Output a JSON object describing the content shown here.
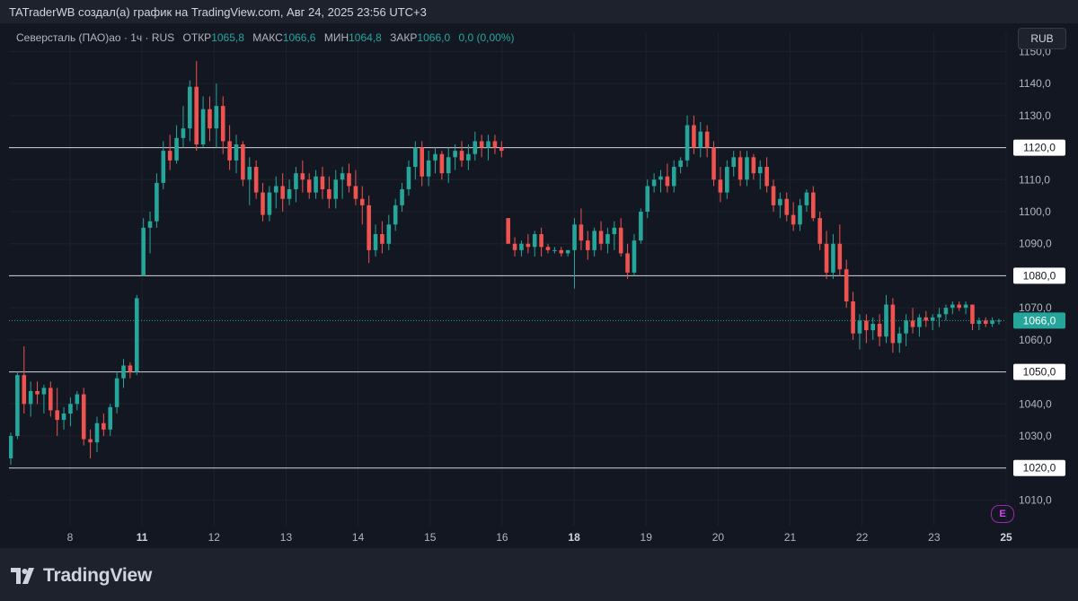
{
  "header": {
    "text": "TATraderWB создал(а) график на TradingView.com, Авг 24, 2025 23:56 UTC+3"
  },
  "legend": {
    "symbol": "Северсталь (ПАО)ао · 1ч · RUS",
    "open_label": "ОТКР",
    "open_value": "1065,8",
    "high_label": "МАКС",
    "high_value": "1066,6",
    "low_label": "МИН",
    "low_value": "1064,8",
    "close_label": "ЗАКР",
    "close_value": "1066,0",
    "change": "0,0 (0,00%)"
  },
  "currency": "RUB",
  "event_badge": "E",
  "logo": {
    "text": "TradingView"
  },
  "colors": {
    "up": "#26a69a",
    "down": "#ef5350",
    "hline": "#d1d4dc",
    "grid": "#1e222d",
    "axis_text": "#b2b5be"
  },
  "chart_data": {
    "type": "candlestick",
    "title": "Северсталь (ПАО)ао · 1ч · RUS",
    "y_range": [
      1002,
      1156
    ],
    "y_ticks": [
      1010,
      1020,
      1030,
      1040,
      1050,
      1060,
      1070,
      1080,
      1090,
      1100,
      1110,
      1120,
      1130,
      1140,
      1150
    ],
    "y_tick_labels": [
      "1010,0",
      "1020,0",
      "1030,0",
      "1040,0",
      "1050,0",
      "1060,0",
      "1070,0",
      "1080,0",
      "1090,0",
      "1100,0",
      "1110,0",
      "1120,0",
      "1130,0",
      "1140,0",
      "1150,0"
    ],
    "x_labels": [
      {
        "label": "8",
        "bold": false
      },
      {
        "label": "11",
        "bold": true
      },
      {
        "label": "12",
        "bold": false
      },
      {
        "label": "13",
        "bold": false
      },
      {
        "label": "14",
        "bold": false
      },
      {
        "label": "15",
        "bold": false
      },
      {
        "label": "16",
        "bold": false
      },
      {
        "label": "18",
        "bold": true
      },
      {
        "label": "19",
        "bold": false
      },
      {
        "label": "20",
        "bold": false
      },
      {
        "label": "21",
        "bold": false
      },
      {
        "label": "22",
        "bold": false
      },
      {
        "label": "23",
        "bold": false
      },
      {
        "label": "25",
        "bold": true
      }
    ],
    "horizontal_levels": [
      {
        "value": 1120,
        "label": "1120,0"
      },
      {
        "value": 1080,
        "label": "1080,0"
      },
      {
        "value": 1050,
        "label": "1050,0"
      },
      {
        "value": 1020,
        "label": "1020,0"
      }
    ],
    "last_price": {
      "value": 1066,
      "label": "1066,0"
    },
    "candles": [
      [
        1023,
        1031,
        1021,
        1030
      ],
      [
        1030,
        1050,
        1029,
        1049
      ],
      [
        1049,
        1058,
        1037,
        1040
      ],
      [
        1040,
        1047,
        1036,
        1044
      ],
      [
        1044,
        1047,
        1040,
        1043
      ],
      [
        1043,
        1046,
        1037,
        1045
      ],
      [
        1045,
        1047,
        1036,
        1038
      ],
      [
        1038,
        1045,
        1030,
        1035
      ],
      [
        1035,
        1039,
        1032,
        1037
      ],
      [
        1037,
        1042,
        1033,
        1040
      ],
      [
        1040,
        1044,
        1038,
        1043
      ],
      [
        1043,
        1045,
        1027,
        1029
      ],
      [
        1029,
        1032,
        1023,
        1028
      ],
      [
        1028,
        1036,
        1025,
        1034
      ],
      [
        1034,
        1037,
        1030,
        1032
      ],
      [
        1032,
        1040,
        1030,
        1039
      ],
      [
        1039,
        1050,
        1037,
        1048
      ],
      [
        1048,
        1054,
        1045,
        1052
      ],
      [
        1052,
        1053,
        1048,
        1050
      ],
      [
        1050,
        1074,
        1049,
        1073
      ],
      [
        1080,
        1098,
        1080,
        1095
      ],
      [
        1095,
        1100,
        1087,
        1097
      ],
      [
        1097,
        1112,
        1095,
        1109
      ],
      [
        1109,
        1122,
        1107,
        1119
      ],
      [
        1119,
        1124,
        1113,
        1116
      ],
      [
        1116,
        1127,
        1115,
        1123
      ],
      [
        1123,
        1133,
        1120,
        1126
      ],
      [
        1126,
        1141,
        1122,
        1139
      ],
      [
        1139,
        1147,
        1119,
        1121
      ],
      [
        1121,
        1136,
        1120,
        1132
      ],
      [
        1132,
        1136,
        1122,
        1126
      ],
      [
        1126,
        1140,
        1120,
        1133
      ],
      [
        1133,
        1136,
        1118,
        1122
      ],
      [
        1122,
        1127,
        1113,
        1116
      ],
      [
        1116,
        1124,
        1112,
        1121
      ],
      [
        1121,
        1122,
        1108,
        1110
      ],
      [
        1110,
        1117,
        1102,
        1114
      ],
      [
        1114,
        1116,
        1104,
        1106
      ],
      [
        1106,
        1109,
        1097,
        1099
      ],
      [
        1099,
        1108,
        1097,
        1106
      ],
      [
        1106,
        1111,
        1101,
        1108
      ],
      [
        1108,
        1112,
        1100,
        1104
      ],
      [
        1104,
        1110,
        1102,
        1107
      ],
      [
        1107,
        1114,
        1103,
        1112
      ],
      [
        1112,
        1116,
        1106,
        1110
      ],
      [
        1110,
        1112,
        1104,
        1106
      ],
      [
        1106,
        1113,
        1104,
        1111
      ],
      [
        1111,
        1114,
        1104,
        1107
      ],
      [
        1107,
        1111,
        1101,
        1104
      ],
      [
        1104,
        1113,
        1101,
        1110
      ],
      [
        1110,
        1114,
        1104,
        1112
      ],
      [
        1112,
        1115,
        1106,
        1108
      ],
      [
        1108,
        1113,
        1102,
        1104
      ],
      [
        1104,
        1108,
        1096,
        1102
      ],
      [
        1102,
        1105,
        1084,
        1088
      ],
      [
        1088,
        1096,
        1086,
        1093
      ],
      [
        1093,
        1097,
        1087,
        1090
      ],
      [
        1090,
        1099,
        1088,
        1096
      ],
      [
        1096,
        1104,
        1094,
        1102
      ],
      [
        1102,
        1109,
        1100,
        1107
      ],
      [
        1107,
        1116,
        1105,
        1114
      ],
      [
        1114,
        1122,
        1110,
        1120
      ],
      [
        1120,
        1122,
        1108,
        1111
      ],
      [
        1111,
        1119,
        1108,
        1116
      ],
      [
        1116,
        1120,
        1112,
        1118
      ],
      [
        1118,
        1119,
        1110,
        1112
      ],
      [
        1112,
        1120,
        1109,
        1117
      ],
      [
        1117,
        1121,
        1113,
        1119
      ],
      [
        1119,
        1122,
        1114,
        1116
      ],
      [
        1116,
        1121,
        1113,
        1118
      ],
      [
        1118,
        1125,
        1116,
        1122
      ],
      [
        1122,
        1124,
        1117,
        1120
      ],
      [
        1120,
        1124,
        1116,
        1122
      ],
      [
        1122,
        1124,
        1118,
        1120
      ],
      [
        1120,
        1122,
        1117,
        1119
      ],
      [
        1098,
        1098,
        1090,
        1090
      ],
      [
        1090,
        1092,
        1086,
        1088
      ],
      [
        1088,
        1091,
        1086,
        1090
      ],
      [
        1090,
        1093,
        1087,
        1089
      ],
      [
        1089,
        1094,
        1086,
        1093
      ],
      [
        1093,
        1095,
        1086,
        1089
      ],
      [
        1089,
        1090,
        1087,
        1088
      ],
      [
        1088,
        1089,
        1087,
        1088
      ],
      [
        1088,
        1089,
        1086,
        1087
      ],
      [
        1087,
        1088,
        1086,
        1088
      ],
      [
        1088,
        1098,
        1076,
        1096
      ],
      [
        1096,
        1101,
        1088,
        1091
      ],
      [
        1091,
        1094,
        1085,
        1088
      ],
      [
        1088,
        1095,
        1086,
        1094
      ],
      [
        1094,
        1097,
        1088,
        1090
      ],
      [
        1090,
        1095,
        1087,
        1093
      ],
      [
        1093,
        1097,
        1088,
        1095
      ],
      [
        1095,
        1098,
        1086,
        1087
      ],
      [
        1087,
        1090,
        1079,
        1081
      ],
      [
        1081,
        1093,
        1080,
        1091
      ],
      [
        1091,
        1101,
        1090,
        1100
      ],
      [
        1100,
        1110,
        1098,
        1108
      ],
      [
        1108,
        1112,
        1106,
        1110
      ],
      [
        1110,
        1113,
        1106,
        1111
      ],
      [
        1111,
        1115,
        1106,
        1108
      ],
      [
        1108,
        1116,
        1106,
        1114
      ],
      [
        1114,
        1117,
        1112,
        1116
      ],
      [
        1116,
        1130,
        1114,
        1127
      ],
      [
        1127,
        1130,
        1118,
        1120
      ],
      [
        1120,
        1128,
        1117,
        1125
      ],
      [
        1125,
        1127,
        1117,
        1120
      ],
      [
        1120,
        1122,
        1108,
        1110
      ],
      [
        1110,
        1114,
        1103,
        1106
      ],
      [
        1106,
        1116,
        1104,
        1114
      ],
      [
        1114,
        1119,
        1111,
        1117
      ],
      [
        1117,
        1119,
        1108,
        1110
      ],
      [
        1110,
        1119,
        1108,
        1117
      ],
      [
        1117,
        1118,
        1110,
        1112
      ],
      [
        1112,
        1116,
        1107,
        1114
      ],
      [
        1114,
        1117,
        1106,
        1108
      ],
      [
        1108,
        1110,
        1100,
        1102
      ],
      [
        1102,
        1106,
        1098,
        1104
      ],
      [
        1104,
        1106,
        1097,
        1099
      ],
      [
        1099,
        1103,
        1094,
        1096
      ],
      [
        1096,
        1104,
        1094,
        1102
      ],
      [
        1102,
        1107,
        1100,
        1106
      ],
      [
        1106,
        1108,
        1097,
        1098
      ],
      [
        1098,
        1100,
        1088,
        1090
      ],
      [
        1090,
        1094,
        1079,
        1081
      ],
      [
        1081,
        1093,
        1079,
        1090
      ],
      [
        1090,
        1096,
        1080,
        1082
      ],
      [
        1082,
        1085,
        1070,
        1072
      ],
      [
        1072,
        1075,
        1060,
        1062
      ],
      [
        1062,
        1068,
        1057,
        1066
      ],
      [
        1066,
        1068,
        1059,
        1063
      ],
      [
        1063,
        1067,
        1060,
        1065
      ],
      [
        1065,
        1068,
        1058,
        1061
      ],
      [
        1061,
        1074,
        1059,
        1071
      ],
      [
        1071,
        1073,
        1056,
        1059
      ],
      [
        1059,
        1064,
        1056,
        1062
      ],
      [
        1062,
        1068,
        1058,
        1066
      ],
      [
        1066,
        1070,
        1062,
        1064
      ],
      [
        1064,
        1068,
        1061,
        1067
      ],
      [
        1067,
        1069,
        1064,
        1066
      ],
      [
        1066,
        1068,
        1063,
        1067
      ],
      [
        1067,
        1070,
        1064,
        1068
      ],
      [
        1068,
        1071,
        1066,
        1070
      ],
      [
        1070,
        1072,
        1068,
        1071
      ],
      [
        1071,
        1072,
        1069,
        1070
      ],
      [
        1070,
        1072,
        1068,
        1071
      ],
      [
        1071,
        1071,
        1063,
        1065
      ],
      [
        1065,
        1067,
        1063,
        1066
      ],
      [
        1066,
        1067,
        1064,
        1065
      ],
      [
        1065,
        1067,
        1064,
        1066
      ],
      [
        1065.8,
        1066.6,
        1064.8,
        1066
      ]
    ]
  }
}
